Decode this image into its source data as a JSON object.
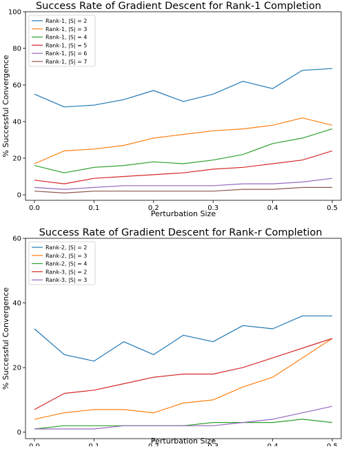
{
  "chart_data": [
    {
      "type": "line",
      "title": "Success Rate of Gradient Descent for Rank-1 Completion",
      "xlabel": "Perturbation Size",
      "ylabel": "% Successful Convergence",
      "xlim": [
        -0.015,
        0.515
      ],
      "ylim": [
        -3,
        100
      ],
      "xticks": [
        0.0,
        0.1,
        0.2,
        0.3,
        0.4,
        0.5
      ],
      "xtick_labels": [
        "0.0",
        "0.1",
        "0.2",
        "0.3",
        "0.4",
        "0.5"
      ],
      "yticks": [
        0,
        20,
        40,
        60,
        80,
        100
      ],
      "ytick_labels": [
        "0",
        "20",
        "40",
        "60",
        "80",
        "100"
      ],
      "legend_position": "top-left",
      "x": [
        0.0,
        0.05,
        0.1,
        0.15,
        0.2,
        0.25,
        0.3,
        0.35,
        0.4,
        0.45,
        0.5
      ],
      "series": [
        {
          "name": "Rank-1, |S| = 2",
          "color": "#1f77b4",
          "values": [
            55,
            48,
            49,
            52,
            57,
            51,
            55,
            62,
            58,
            68,
            69
          ]
        },
        {
          "name": "Rank-1, |S| = 3",
          "color": "#ff7f0e",
          "values": [
            17,
            24,
            25,
            27,
            31,
            33,
            35,
            36,
            38,
            42,
            38
          ]
        },
        {
          "name": "Rank-1, |S| = 4",
          "color": "#2ca02c",
          "values": [
            16,
            12,
            15,
            16,
            18,
            17,
            19,
            22,
            28,
            31,
            36
          ]
        },
        {
          "name": "Rank-1, |S| = 5",
          "color": "#d62728",
          "values": [
            8,
            6,
            9,
            10,
            11,
            12,
            14,
            15,
            17,
            19,
            24
          ]
        },
        {
          "name": "Rank-1, |S| = 6",
          "color": "#9467bd",
          "values": [
            4,
            3,
            4,
            5,
            5,
            5,
            5,
            6,
            6,
            7,
            9
          ]
        },
        {
          "name": "Rank-1, |S| = 7",
          "color": "#8c564b",
          "values": [
            2,
            1,
            2,
            2,
            2,
            2,
            2,
            3,
            3,
            4,
            4
          ]
        }
      ]
    },
    {
      "type": "line",
      "title": "Success Rate of Gradient Descent for Rank-r Completion",
      "xlabel": "Perturbation Size",
      "ylabel": "% Successful Convergence",
      "xlim": [
        -0.015,
        0.515
      ],
      "ylim": [
        -2,
        60
      ],
      "xticks": [
        0.0,
        0.1,
        0.2,
        0.3,
        0.4,
        0.5
      ],
      "xtick_labels": [
        "0.0",
        "0.1",
        "0.2",
        "0.3",
        "0.4",
        "0.5"
      ],
      "yticks": [
        0,
        20,
        40,
        60
      ],
      "ytick_labels": [
        "0",
        "20",
        "40",
        "60"
      ],
      "legend_position": "top-left",
      "x": [
        0.0,
        0.05,
        0.1,
        0.15,
        0.2,
        0.25,
        0.3,
        0.35,
        0.4,
        0.45,
        0.5
      ],
      "series": [
        {
          "name": "Rank-2, |S| = 2",
          "color": "#1f77b4",
          "values": [
            32,
            24,
            22,
            28,
            24,
            30,
            28,
            33,
            32,
            36,
            36
          ]
        },
        {
          "name": "Rank-2, |S| = 3",
          "color": "#ff7f0e",
          "values": [
            4,
            6,
            7,
            7,
            6,
            9,
            10,
            14,
            17,
            23,
            29
          ]
        },
        {
          "name": "Rank-2, |S| = 4",
          "color": "#2ca02c",
          "values": [
            1,
            2,
            2,
            2,
            2,
            2,
            3,
            3,
            3,
            4,
            3
          ]
        },
        {
          "name": "Rank-3, |S| = 2",
          "color": "#d62728",
          "values": [
            7,
            12,
            13,
            15,
            17,
            18,
            18,
            20,
            23,
            26,
            29
          ]
        },
        {
          "name": "Rank-3, |S| = 3",
          "color": "#9467bd",
          "values": [
            1,
            1,
            1,
            2,
            2,
            2,
            2,
            3,
            4,
            6,
            8
          ]
        }
      ]
    }
  ]
}
